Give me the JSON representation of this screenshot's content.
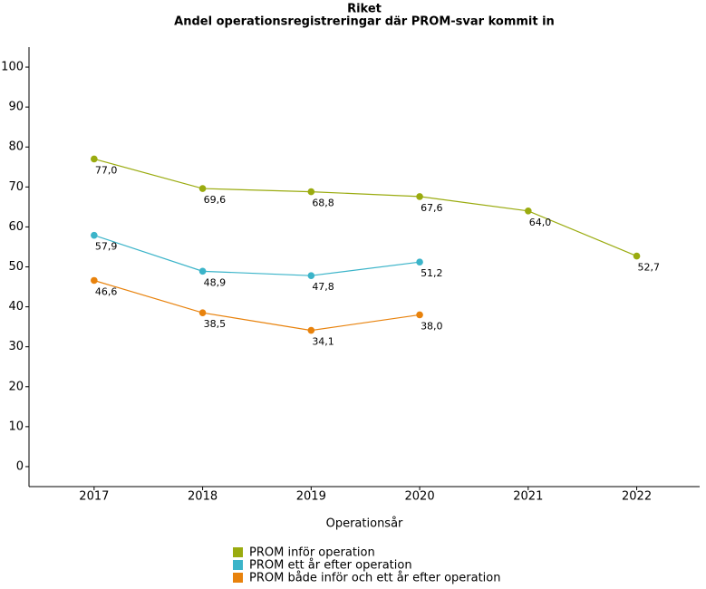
{
  "chart_data": {
    "type": "line",
    "title": "Riket",
    "subtitle": "Andel operationsregistreringar där PROM-svar kommit in",
    "x_label": "Operationsår",
    "x": [
      2017,
      2018,
      2019,
      2020,
      2021,
      2022
    ],
    "xlim": [
      2016.4,
      2022.58
    ],
    "xticks": [
      2017,
      2018,
      2019,
      2020,
      2021,
      2022
    ],
    "ylim": [
      -5,
      105
    ],
    "yticks": [
      0,
      10,
      20,
      30,
      40,
      50,
      60,
      70,
      80,
      90,
      100
    ],
    "grid": false,
    "legend": "bottom",
    "series": [
      {
        "name": "PROM inför operation",
        "color": "#9aab0f",
        "values": [
          77.0,
          69.6,
          68.8,
          67.6,
          64.0,
          52.7
        ],
        "value_labels": [
          "77,0",
          "69,6",
          "68,8",
          "67,6",
          "64,0",
          "52,7"
        ]
      },
      {
        "name": "PROM ett år efter operation",
        "color": "#3bb4c9",
        "values": [
          57.9,
          48.9,
          47.8,
          51.2,
          null,
          null
        ],
        "value_labels": [
          "57,9",
          "48,9",
          "47,8",
          "51,2",
          null,
          null
        ]
      },
      {
        "name": "PROM både inför och ett år efter operation",
        "color": "#e8820c",
        "values": [
          46.6,
          38.5,
          34.1,
          38.0,
          null,
          null
        ],
        "value_labels": [
          "46,6",
          "38,5",
          "34,1",
          "38,0",
          null,
          null
        ]
      }
    ]
  }
}
